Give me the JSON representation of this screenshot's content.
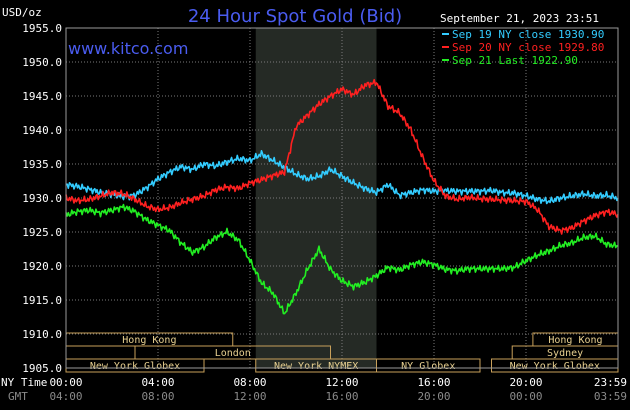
{
  "chart_data": {
    "type": "line",
    "title": "24 Hour Spot Gold (Bid)",
    "site": "www.kitco.com",
    "date_label": "September 21, 2023 23:51",
    "y_unit_label": "USD/oz",
    "ylim": [
      1905.0,
      1955.0
    ],
    "y_ticks": [
      "1955.0",
      "1950.0",
      "1945.0",
      "1940.0",
      "1935.0",
      "1930.0",
      "1925.0",
      "1920.0",
      "1915.0",
      "1910.0",
      "1905.0"
    ],
    "xlim_hours": [
      0,
      24
    ],
    "x_tick_hours": [
      0,
      4,
      8,
      12,
      16,
      20,
      24
    ],
    "x_ticks_ny": [
      "00:00",
      "04:00",
      "08:00",
      "12:00",
      "16:00",
      "20:00",
      "23:59"
    ],
    "x_ticks_gmt": [
      "04:00",
      "08:00",
      "12:00",
      "16:00",
      "20:00",
      "00:00",
      "03:59"
    ],
    "x_axis_label_ny": "NY Time",
    "x_axis_label_gmt": "GMT",
    "highlight_hours": [
      8.25,
      13.5
    ],
    "legend": [
      {
        "label": "Sep 19 NY close 1930.90",
        "color": "#33ccff"
      },
      {
        "label": "Sep 20 NY close 1929.80",
        "color": "#ff2020"
      },
      {
        "label": "Sep 21 Last 1922.90",
        "color": "#22ee22"
      }
    ],
    "series": [
      {
        "name": "Sep 19",
        "color": "#33ccff",
        "x": [
          0,
          0.5,
          1,
          1.5,
          2,
          2.5,
          3,
          3.5,
          4,
          4.5,
          5,
          5.5,
          6,
          6.5,
          7,
          7.5,
          8,
          8.5,
          9,
          9.5,
          10,
          10.5,
          11,
          11.5,
          12,
          12.5,
          13,
          13.5,
          14,
          14.5,
          15,
          15.5,
          16,
          16.5,
          17,
          17.5,
          18,
          18.5,
          19,
          19.5,
          20,
          20.5,
          21,
          21.5,
          22,
          22.5,
          23,
          23.5,
          24
        ],
        "y": [
          1932,
          1931.7,
          1931.3,
          1930.8,
          1930.6,
          1930.2,
          1930.4,
          1931.5,
          1932.8,
          1933.8,
          1934.6,
          1934.2,
          1935,
          1934.7,
          1935.3,
          1935.8,
          1935.5,
          1936.5,
          1935.5,
          1934.5,
          1933.5,
          1932.8,
          1933.2,
          1934.2,
          1933.2,
          1932.2,
          1931.4,
          1930.8,
          1932,
          1930.4,
          1930.8,
          1931.2,
          1931,
          1931.1,
          1931,
          1931,
          1931,
          1931.1,
          1930.8,
          1930.7,
          1930.3,
          1929.8,
          1929.5,
          1930,
          1930.3,
          1930.6,
          1930.3,
          1930.4,
          1930
        ]
      },
      {
        "name": "Sep 20",
        "color": "#ff2020",
        "x": [
          0,
          0.5,
          1,
          1.5,
          2,
          2.5,
          3,
          3.5,
          4,
          4.5,
          5,
          5.5,
          6,
          6.5,
          7,
          7.5,
          8,
          8.5,
          9,
          9.5,
          10,
          10.5,
          11,
          11.5,
          12,
          12.5,
          13,
          13.5,
          14,
          14.5,
          15,
          15.5,
          16,
          16.5,
          17,
          17.5,
          18,
          18.5,
          19,
          19.5,
          20,
          20.5,
          21,
          21.5,
          22,
          22.5,
          23,
          23.5,
          24
        ],
        "y": [
          1930,
          1929.6,
          1929.8,
          1930.3,
          1930.8,
          1930.6,
          1929.8,
          1928.8,
          1928.3,
          1928.6,
          1929.3,
          1929.8,
          1930.3,
          1931.2,
          1931.6,
          1931.4,
          1932.2,
          1932.7,
          1933.3,
          1933.8,
          1940.5,
          1942.2,
          1943.8,
          1945,
          1946,
          1945.2,
          1946.6,
          1947,
          1943.5,
          1942.5,
          1940,
          1936,
          1932.5,
          1930.3,
          1929.8,
          1930.1,
          1929.9,
          1929.8,
          1929.7,
          1929.6,
          1929.5,
          1928.3,
          1925.8,
          1925.2,
          1925.6,
          1926.6,
          1927.4,
          1928,
          1927.6
        ]
      },
      {
        "name": "Sep 21",
        "color": "#22ee22",
        "x": [
          0,
          0.5,
          1,
          1.5,
          2,
          2.5,
          3,
          3.5,
          4,
          4.5,
          5,
          5.5,
          6,
          6.5,
          7,
          7.5,
          8,
          8.5,
          9,
          9.5,
          10,
          10.5,
          11,
          11.5,
          12,
          12.5,
          13,
          13.5,
          14,
          14.5,
          15,
          15.5,
          16,
          16.5,
          17,
          17.5,
          18,
          18.5,
          19,
          19.5,
          20,
          20.5,
          21,
          21.5,
          22,
          22.5,
          23,
          23.5,
          24
        ],
        "y": [
          1927.5,
          1928,
          1928.2,
          1927.8,
          1928.2,
          1928.7,
          1928,
          1926.8,
          1926,
          1925.2,
          1923.4,
          1922,
          1922.8,
          1924.2,
          1925,
          1923.8,
          1920.8,
          1917.5,
          1916,
          1913,
          1916,
          1919.5,
          1922.5,
          1919.5,
          1917.8,
          1917,
          1917.6,
          1918.6,
          1919.8,
          1919.4,
          1920.2,
          1920.6,
          1920.2,
          1919.5,
          1919.3,
          1919.6,
          1919.6,
          1919.6,
          1919.6,
          1919.8,
          1920.8,
          1921.6,
          1922.2,
          1923,
          1923.4,
          1924.2,
          1924.4,
          1923.2,
          1922.9
        ]
      }
    ],
    "sessions": [
      {
        "label": "Hong Kong",
        "start": 0,
        "end": 7.25,
        "row": 0
      },
      {
        "label": "London",
        "start": 3,
        "end": 11.5,
        "row": 1
      },
      {
        "label": "New York Globex",
        "start": 0,
        "end": 6,
        "row": 2
      },
      {
        "label": "New York NYMEX",
        "start": 8.25,
        "end": 13.5,
        "row": 2
      },
      {
        "label": "NY Globex",
        "start": 13.5,
        "end": 18.0,
        "row": 2
      },
      {
        "label": "Hong Kong",
        "start": 20.3,
        "end": 24,
        "row": 0
      },
      {
        "label": "Sydney",
        "start": 19.4,
        "end": 24,
        "row": 1
      },
      {
        "label": "New York Globex",
        "start": 18.5,
        "end": 24,
        "row": 2
      }
    ]
  }
}
